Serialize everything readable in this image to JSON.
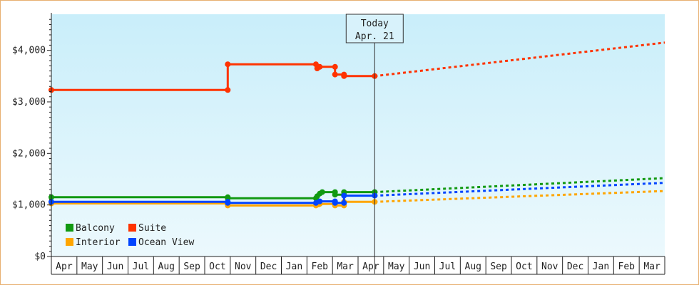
{
  "chart_data": {
    "type": "line",
    "title": "",
    "xlabel": "",
    "ylabel": "",
    "ylim": [
      0,
      4700
    ],
    "y_ticks": [
      {
        "value": 0,
        "label": "$0"
      },
      {
        "value": 1000,
        "label": "$1,000"
      },
      {
        "value": 2000,
        "label": "$2,000"
      },
      {
        "value": 3000,
        "label": "$3,000"
      },
      {
        "value": 4000,
        "label": "$4,000"
      }
    ],
    "x_unit": "months since first axis month (Apr)",
    "xlim": [
      0,
      24
    ],
    "month_labels": [
      "Apr",
      "May",
      "Jun",
      "Jul",
      "Aug",
      "Sep",
      "Oct",
      "Nov",
      "Dec",
      "Jan",
      "Feb",
      "Mar",
      "Apr",
      "May",
      "Jun",
      "Jul",
      "Aug",
      "Sep",
      "Oct",
      "Nov",
      "Dec",
      "Jan",
      "Feb",
      "Mar"
    ],
    "today": {
      "x": 12.65,
      "line1": "Today",
      "line2": "Apr. 21"
    },
    "grid": false,
    "legend_position": "bottom-left",
    "series": [
      {
        "name": "Balcony",
        "color": "#119911",
        "points": [
          [
            0,
            1150
          ],
          [
            6.9,
            1150
          ],
          [
            6.9,
            1130
          ],
          [
            10.35,
            1130
          ],
          [
            10.4,
            1170
          ],
          [
            10.5,
            1220
          ],
          [
            10.6,
            1250
          ],
          [
            11.1,
            1250
          ],
          [
            11.1,
            1200
          ],
          [
            11.45,
            1200
          ],
          [
            11.45,
            1250
          ],
          [
            12.65,
            1250
          ]
        ],
        "forecast": [
          [
            12.65,
            1250
          ],
          [
            24,
            1520
          ]
        ]
      },
      {
        "name": "Suite",
        "color": "#ff3300",
        "points": [
          [
            0,
            3230
          ],
          [
            6.9,
            3230
          ],
          [
            6.9,
            3730
          ],
          [
            10.35,
            3730
          ],
          [
            10.4,
            3650
          ],
          [
            10.5,
            3680
          ],
          [
            11.1,
            3680
          ],
          [
            11.1,
            3530
          ],
          [
            11.45,
            3530
          ],
          [
            11.45,
            3500
          ],
          [
            12.65,
            3500
          ]
        ],
        "forecast": [
          [
            12.65,
            3500
          ],
          [
            24,
            4150
          ]
        ]
      },
      {
        "name": "Interior",
        "color": "#ffa500",
        "points": [
          [
            0,
            1030
          ],
          [
            6.9,
            1030
          ],
          [
            6.9,
            990
          ],
          [
            10.35,
            990
          ],
          [
            10.45,
            1010
          ],
          [
            10.5,
            1020
          ],
          [
            11.1,
            1020
          ],
          [
            11.1,
            990
          ],
          [
            11.45,
            990
          ],
          [
            11.45,
            1060
          ],
          [
            12.65,
            1060
          ]
        ],
        "forecast": [
          [
            12.65,
            1060
          ],
          [
            24,
            1270
          ]
        ]
      },
      {
        "name": "Ocean View",
        "color": "#0044ff",
        "points": [
          [
            0,
            1060
          ],
          [
            6.9,
            1060
          ],
          [
            6.9,
            1040
          ],
          [
            10.35,
            1040
          ],
          [
            10.5,
            1070
          ],
          [
            11.1,
            1070
          ],
          [
            11.1,
            1040
          ],
          [
            11.45,
            1040
          ],
          [
            11.45,
            1180
          ],
          [
            12.65,
            1180
          ]
        ],
        "forecast": [
          [
            12.65,
            1180
          ],
          [
            24,
            1430
          ]
        ]
      }
    ]
  }
}
